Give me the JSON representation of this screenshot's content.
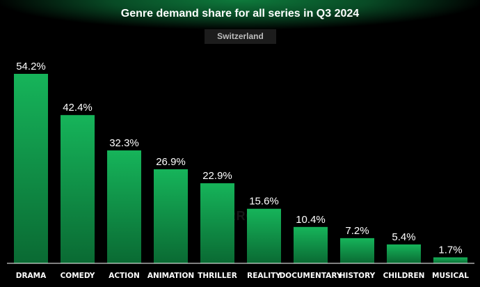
{
  "header": {
    "title": "Genre demand share for all series in Q3 2024",
    "region": "Switzerland"
  },
  "watermark": "PARROT",
  "colors": {
    "bar_top": "#16b45a",
    "bar_bottom": "#0a6a33",
    "value_label": "#ffffff",
    "tick_label": "#ffffff",
    "axis": "#ffffff"
  },
  "chart_data": {
    "type": "bar",
    "title": "Genre demand share for all series in Q3 2024",
    "subtitle": "Switzerland",
    "categories": [
      "DRAMA",
      "COMEDY",
      "ACTION",
      "ANIMATION",
      "THRILLER",
      "REALITY",
      "DOCUMENTARY",
      "HISTORY",
      "CHILDREN",
      "MUSICAL"
    ],
    "values": [
      54.2,
      42.4,
      32.3,
      26.9,
      22.9,
      15.6,
      10.4,
      7.2,
      5.4,
      1.7
    ],
    "value_labels": [
      "54.2%",
      "42.4%",
      "32.3%",
      "26.9%",
      "22.9%",
      "15.6%",
      "10.4%",
      "7.2%",
      "5.4%",
      "1.7%"
    ],
    "unit": "%",
    "ylim": [
      0,
      54.2
    ],
    "grid": false,
    "legend": "none"
  }
}
